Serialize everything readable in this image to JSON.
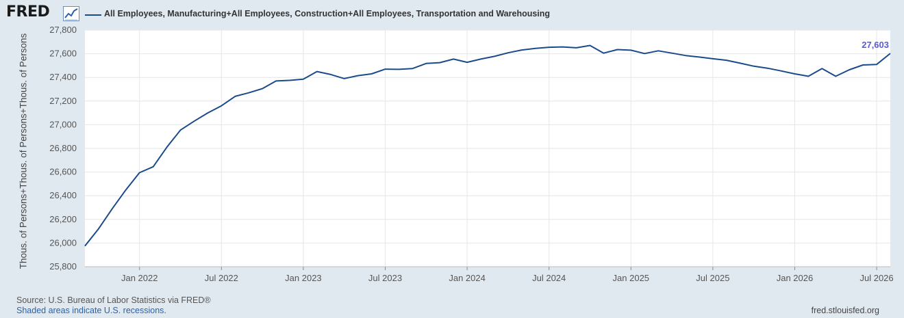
{
  "header": {
    "logo_text": "FRED",
    "logo_icon": "line-chart-icon",
    "legend_label": "All Employees, Manufacturing+All Employees, Construction+All Employees, Transportation and Warehousing",
    "series_color": "#1a4a8a"
  },
  "footer": {
    "source": "Source: U.S. Bureau of Labor Statistics via FRED®",
    "shaded": "Shaded areas indicate U.S. recessions.",
    "url": "fred.stlouisfed.org"
  },
  "chart_data": {
    "type": "line",
    "ylabel": "Thous. of Persons+Thous. of Persons+Thous. of Persons",
    "ylim": [
      25800,
      27800
    ],
    "yticks": [
      25800,
      26000,
      26200,
      26400,
      26600,
      26800,
      27000,
      27200,
      27400,
      27600,
      27800
    ],
    "ytick_labels": [
      "25,800",
      "26,000",
      "26,200",
      "26,400",
      "26,600",
      "26,800",
      "27,000",
      "27,200",
      "27,400",
      "27,600",
      "27,800"
    ],
    "xlim": [
      "2021-09",
      "2026-08"
    ],
    "xticks": [
      {
        "date": "2022-01",
        "label": "Jan 2022"
      },
      {
        "date": "2022-07",
        "label": "Jul 2022"
      },
      {
        "date": "2023-01",
        "label": "Jan 2023"
      },
      {
        "date": "2023-07",
        "label": "Jul 2023"
      },
      {
        "date": "2024-01",
        "label": "Jan 2024"
      },
      {
        "date": "2024-07",
        "label": "Jul 2024"
      },
      {
        "date": "2025-01",
        "label": "Jan 2025"
      },
      {
        "date": "2025-07",
        "label": "Jul 2025"
      },
      {
        "date": "2026-01",
        "label": "Jan 2026"
      },
      {
        "date": "2026-07",
        "label": "Jul 2026"
      }
    ],
    "grid": true,
    "last_value_label": "27,603",
    "series": [
      {
        "name": "All Employees, Manufacturing+All Employees, Construction+All Employees, Transportation and Warehousing",
        "x": [
          "2021-09",
          "2021-10",
          "2021-11",
          "2021-12",
          "2022-01",
          "2022-02",
          "2022-03",
          "2022-04",
          "2022-05",
          "2022-06",
          "2022-07",
          "2022-08",
          "2022-09",
          "2022-10",
          "2022-11",
          "2022-12",
          "2023-01",
          "2023-02",
          "2023-03",
          "2023-04",
          "2023-05",
          "2023-06",
          "2023-07",
          "2023-08",
          "2023-09",
          "2023-10",
          "2023-11",
          "2023-12",
          "2024-01",
          "2024-02",
          "2024-03",
          "2024-04",
          "2024-05",
          "2024-06",
          "2024-07",
          "2024-08",
          "2024-09",
          "2024-10",
          "2024-11",
          "2024-12",
          "2025-01",
          "2025-02",
          "2025-03",
          "2025-04",
          "2025-05",
          "2025-06",
          "2025-07",
          "2025-08",
          "2025-09",
          "2025-10",
          "2025-11",
          "2025-12",
          "2026-01",
          "2026-02",
          "2026-03",
          "2026-04",
          "2026-05",
          "2026-06",
          "2026-07",
          "2026-08"
        ],
        "y": [
          25975,
          26120,
          26290,
          26450,
          26595,
          26645,
          26810,
          26955,
          27030,
          27100,
          27160,
          27240,
          27270,
          27305,
          27370,
          27375,
          27385,
          27450,
          27425,
          27390,
          27415,
          27430,
          27470,
          27468,
          27475,
          27518,
          27525,
          27555,
          27528,
          27555,
          27578,
          27608,
          27632,
          27645,
          27655,
          27658,
          27650,
          27670,
          27605,
          27635,
          27630,
          27602,
          27625,
          27605,
          27585,
          27572,
          27558,
          27545,
          27520,
          27495,
          27478,
          27455,
          27430,
          27410,
          27475,
          27410,
          27465,
          27505,
          27510,
          27603
        ]
      }
    ]
  }
}
